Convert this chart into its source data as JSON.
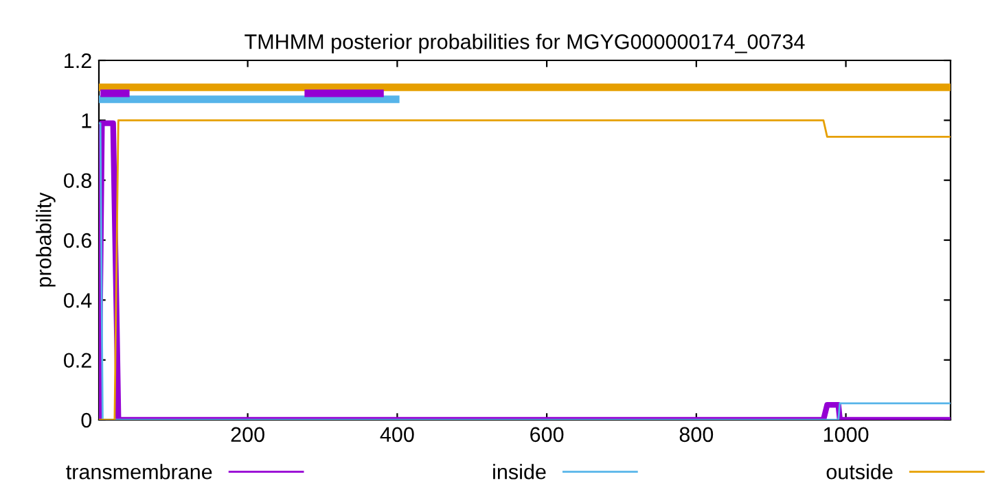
{
  "chart_data": {
    "type": "line",
    "title": "TMHMM posterior probabilities for MGYG000000174_00734",
    "ylabel": "probability",
    "xlim": [
      1,
      1140
    ],
    "ylim": [
      0,
      1.2
    ],
    "xticks": [
      200,
      400,
      600,
      800,
      1000
    ],
    "yticks": [
      0,
      0.2,
      0.4,
      0.6,
      0.8,
      {
        "value": 1,
        "label": "1"
      },
      1.2
    ],
    "grid": false,
    "legend": "bottom",
    "marker": "none",
    "line_style": "solid",
    "series": [
      {
        "name": "transmembrane",
        "color": "#9400d3",
        "x": [
          1,
          5,
          20,
          25,
          27,
          970,
          975,
          990,
          992,
          1140
        ],
        "values": [
          0,
          0.99,
          0.99,
          0.3,
          0,
          0,
          0.05,
          0.05,
          0,
          0
        ]
      },
      {
        "name": "inside",
        "color": "#56b4e9",
        "x": [
          1,
          3,
          6,
          990,
          992,
          1140
        ],
        "values": [
          0.99,
          0.99,
          0,
          0,
          0.055,
          0.055
        ]
      },
      {
        "name": "outside",
        "color": "#e69f00",
        "x": [
          1,
          22,
          27,
          970,
          975,
          1140
        ],
        "values": [
          0,
          0,
          1,
          1,
          0.945,
          0.945
        ]
      },
      {
        "color": "#e69f00",
        "x": [
          1,
          1140
        ],
        "values": [
          1.11,
          1.11
        ]
      },
      {
        "color": "#56b4e9",
        "x": [
          1,
          403
        ],
        "values": [
          1.07,
          1.07
        ]
      },
      {
        "color": "#9400d3",
        "x": [
          3,
          42
        ],
        "values": [
          1.09,
          1.09
        ]
      },
      {
        "color": "#9400d3",
        "x": [
          276,
          382
        ],
        "values": [
          1.09,
          1.09
        ]
      }
    ]
  }
}
